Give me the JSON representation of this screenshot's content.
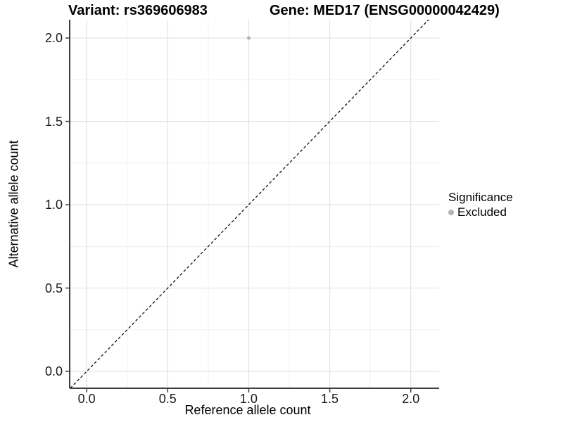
{
  "chart_data": {
    "type": "scatter",
    "title_left": "Variant: rs369606983",
    "title_right": "Gene: MED17 (ENSG00000042429)",
    "xlabel": "Reference allele count",
    "ylabel": "Alternative allele count",
    "x_tick_labels": [
      "0.0",
      "0.5",
      "1.0",
      "1.5",
      "2.0"
    ],
    "x_tick_values": [
      0,
      0.5,
      1,
      1.5,
      2
    ],
    "y_tick_labels": [
      "0.0",
      "0.5",
      "1.0",
      "1.5",
      "2.0"
    ],
    "y_tick_values": [
      0,
      0.5,
      1,
      1.5,
      2
    ],
    "x_minor_values": [
      0.25,
      0.75,
      1.25,
      1.75
    ],
    "y_minor_values": [
      0.25,
      0.75,
      1.25,
      1.75
    ],
    "xlim": [
      -0.105,
      2.175
    ],
    "ylim": [
      -0.101,
      2.11
    ],
    "grid": "major+minor",
    "legend_position": "right",
    "points": [
      {
        "x": 1.0,
        "y": 2.0,
        "series": "Excluded"
      }
    ],
    "reference_line": {
      "slope": 1,
      "intercept": 0,
      "linetype": "dashed"
    },
    "legend": {
      "title": "Significance",
      "items": [
        {
          "label": "Excluded",
          "color": "#b4b4b4"
        }
      ]
    },
    "colors": {
      "point": "#b4b4b4",
      "grid_major": "#e3e3e3",
      "grid_minor": "#f1f1f1",
      "axis": "#3f3f3f",
      "dashed_line": "#111111"
    }
  }
}
